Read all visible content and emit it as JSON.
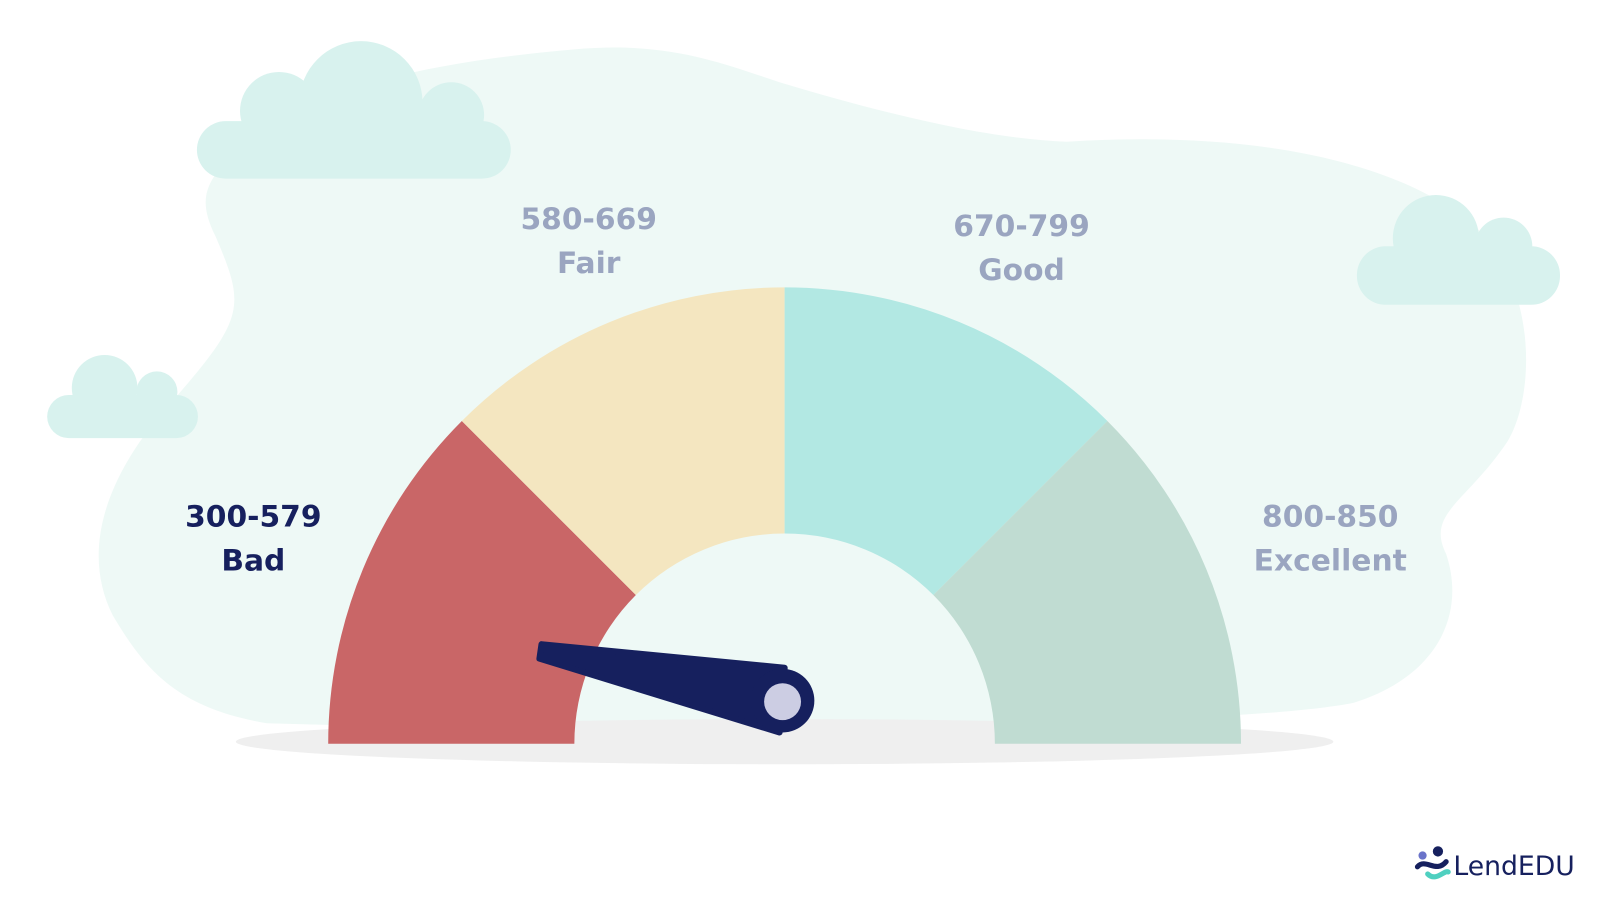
{
  "segments": [
    {
      "range": "300-579",
      "label": "Bad"
    },
    {
      "range": "580-669",
      "label": "Fair"
    },
    {
      "range": "670-799",
      "label": "Good"
    },
    {
      "range": "800-850",
      "label": "Excellent"
    }
  ],
  "logo": "LendEDU"
}
